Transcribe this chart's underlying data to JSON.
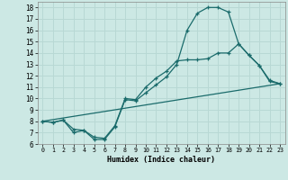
{
  "xlabel": "Humidex (Indice chaleur)",
  "bg_color": "#cce8e4",
  "line_color": "#1a6b6b",
  "grid_color": "#b8d8d4",
  "xlim": [
    -0.5,
    23.5
  ],
  "ylim": [
    6,
    18.5
  ],
  "yticks": [
    6,
    7,
    8,
    9,
    10,
    11,
    12,
    13,
    14,
    15,
    16,
    17,
    18
  ],
  "xticks": [
    0,
    1,
    2,
    3,
    4,
    5,
    6,
    7,
    8,
    9,
    10,
    11,
    12,
    13,
    14,
    15,
    16,
    17,
    18,
    19,
    20,
    21,
    22,
    23
  ],
  "line1_x": [
    0,
    1,
    2,
    3,
    4,
    5,
    6,
    7,
    8,
    9,
    10,
    11,
    12,
    13,
    14,
    15,
    16,
    17,
    18,
    19,
    20,
    21,
    22,
    23
  ],
  "line1_y": [
    8.0,
    7.9,
    8.1,
    7.0,
    7.2,
    6.4,
    6.4,
    7.5,
    9.9,
    9.8,
    10.5,
    11.2,
    11.9,
    13.0,
    16.0,
    17.5,
    18.0,
    18.0,
    17.6,
    14.8,
    13.8,
    12.9,
    11.6,
    11.3
  ],
  "line2_x": [
    0,
    1,
    2,
    3,
    4,
    5,
    6,
    7,
    8,
    9,
    10,
    11,
    12,
    13,
    14,
    15,
    16,
    17,
    18,
    19,
    20,
    21,
    22,
    23
  ],
  "line2_y": [
    8.0,
    7.9,
    8.1,
    7.3,
    7.2,
    6.6,
    6.5,
    7.6,
    10.0,
    9.9,
    11.0,
    11.8,
    12.4,
    13.3,
    13.4,
    13.4,
    13.5,
    14.0,
    14.0,
    14.8,
    13.8,
    12.9,
    11.5,
    11.3
  ],
  "line3_x": [
    0,
    23
  ],
  "line3_y": [
    8.0,
    11.3
  ],
  "marker": "+",
  "markersize": 3.5,
  "linewidth": 0.9
}
